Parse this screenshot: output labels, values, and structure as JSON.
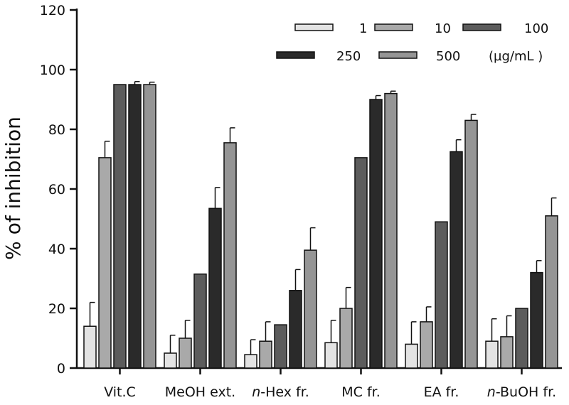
{
  "chart_data": {
    "type": "bar",
    "title": "",
    "xlabel": "",
    "ylabel": "% of inhibition",
    "ylim": [
      0,
      120
    ],
    "yticks": [
      "0",
      "20",
      "40",
      "60",
      "80",
      "100",
      "120"
    ],
    "grid": false,
    "legend_position": "top-right",
    "legend_unit": "(µg/mL )",
    "categories": [
      {
        "pre": "",
        "italic": "",
        "post": "Vit.C"
      },
      {
        "pre": "",
        "italic": "",
        "post": "MeOH ext."
      },
      {
        "pre": "",
        "italic": "n",
        "post": "-Hex fr."
      },
      {
        "pre": "",
        "italic": "",
        "post": "MC fr."
      },
      {
        "pre": "",
        "italic": "",
        "post": "EA fr."
      },
      {
        "pre": "",
        "italic": "n",
        "post": "-BuOH fr."
      }
    ],
    "series": [
      {
        "name": "1",
        "color": "#e3e3e3",
        "values": [
          14,
          5,
          4.5,
          8.5,
          8,
          9
        ],
        "errors": [
          8,
          6,
          5,
          7.5,
          7.5,
          7.5
        ]
      },
      {
        "name": "10",
        "color": "#a9a9a9",
        "values": [
          70.5,
          10,
          9,
          20,
          15.5,
          10.5
        ],
        "errors": [
          5.5,
          6,
          6.5,
          7,
          5,
          7
        ]
      },
      {
        "name": "100",
        "color": "#5c5c5c",
        "values": [
          95,
          31.5,
          14.5,
          70.5,
          49,
          20
        ],
        "errors": [
          0,
          0,
          0,
          0,
          0,
          0
        ]
      },
      {
        "name": "250",
        "color": "#2a2a2a",
        "values": [
          95,
          53.5,
          26,
          90,
          72.5,
          32
        ],
        "errors": [
          1,
          7,
          7,
          1.3,
          4,
          4
        ]
      },
      {
        "name": "500",
        "color": "#959595",
        "values": [
          95,
          75.5,
          39.5,
          92,
          83,
          51
        ],
        "errors": [
          0.8,
          5,
          7.5,
          0.8,
          2,
          6
        ]
      }
    ]
  }
}
